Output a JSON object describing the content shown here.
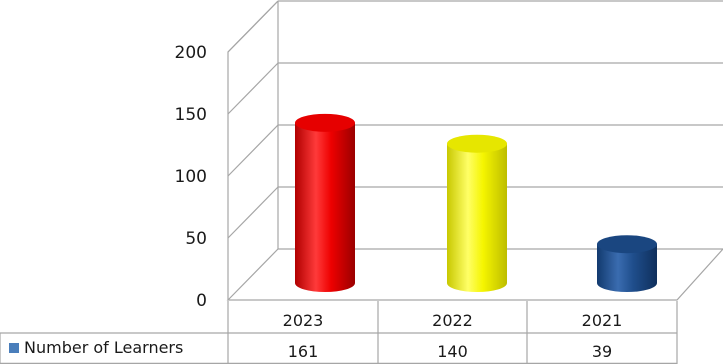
{
  "chart_data": {
    "type": "bar",
    "style": "3d-cylinder",
    "categories": [
      "2023",
      "2022",
      "2021"
    ],
    "series": [
      {
        "name": "Number of Learners",
        "values": [
          161,
          140,
          39
        ],
        "legend_color": "#4a7ebb"
      }
    ],
    "bar_colors": [
      "#ff0000",
      "#ffff00",
      "#1f4e8c"
    ],
    "ylim": [
      0,
      200
    ],
    "yticks": [
      "0",
      "50",
      "100",
      "150",
      "200"
    ],
    "grid": true,
    "data_table": true
  }
}
